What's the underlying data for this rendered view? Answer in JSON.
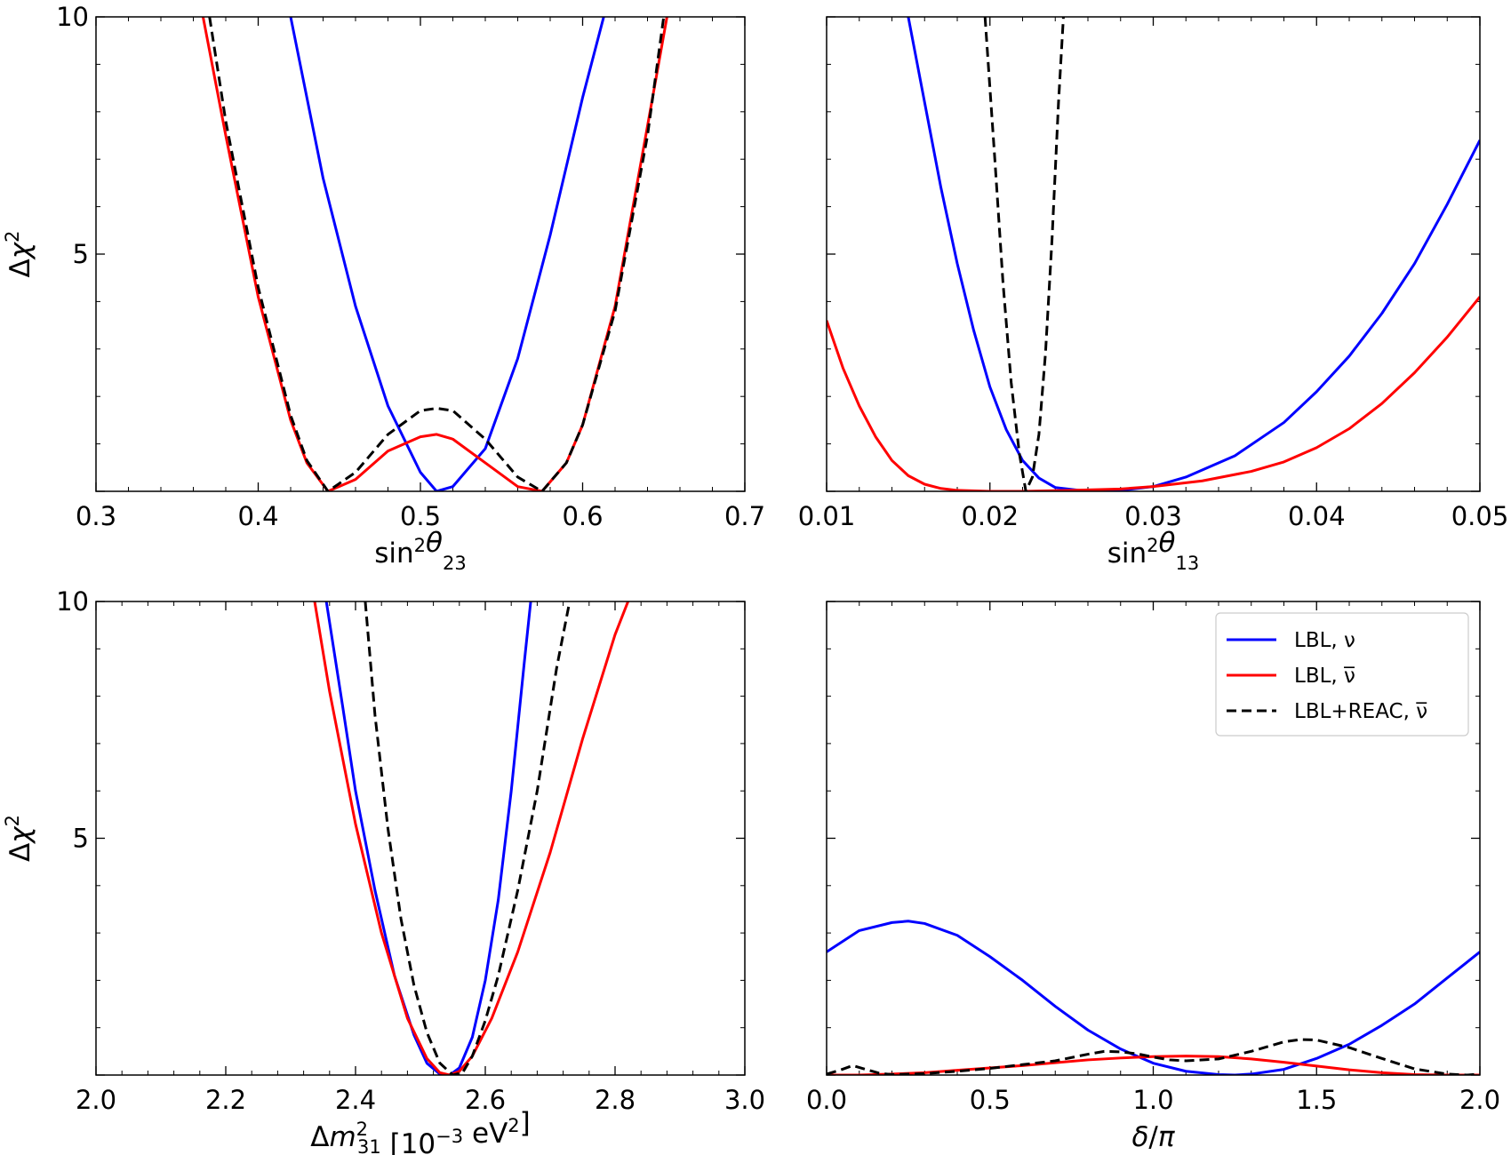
{
  "colors": {
    "nu": "#0000ff",
    "nubar": "#ff0000",
    "combined": "#000000"
  },
  "legend": {
    "placement": "top-right of bottom-right panel",
    "entries": [
      {
        "label": "LBL, ν",
        "series": "nu",
        "style": "solid"
      },
      {
        "label": "LBL, ν̅",
        "series": "nubar",
        "style": "solid"
      },
      {
        "label": "LBL+REAC, ν̅",
        "series": "combined",
        "style": "dashed"
      }
    ]
  },
  "chart_data": [
    {
      "type": "line",
      "panel": "top-left",
      "xlabel": "sin²θ23",
      "ylabel": "Δχ²",
      "xlim": [
        0.3,
        0.7
      ],
      "ylim": [
        0,
        10
      ],
      "xticks": [
        "0.3",
        "0.4",
        "0.5",
        "0.6",
        "0.7"
      ],
      "yticks": [
        "5",
        "10"
      ],
      "series": [
        {
          "name": "LBL, ν",
          "key": "nu",
          "x": [
            0.42,
            0.44,
            0.46,
            0.48,
            0.5,
            0.51,
            0.52,
            0.54,
            0.56,
            0.58,
            0.6,
            0.613
          ],
          "y": [
            10,
            6.6,
            3.9,
            1.8,
            0.4,
            0.0,
            0.1,
            0.9,
            2.8,
            5.4,
            8.3,
            10
          ]
        },
        {
          "name": "LBL, ν̅",
          "key": "nubar",
          "x": [
            0.366,
            0.38,
            0.4,
            0.42,
            0.43,
            0.443,
            0.46,
            0.48,
            0.5,
            0.51,
            0.52,
            0.54,
            0.56,
            0.575,
            0.59,
            0.6,
            0.62,
            0.64,
            0.652
          ],
          "y": [
            10,
            7.5,
            4.1,
            1.5,
            0.6,
            0.0,
            0.25,
            0.85,
            1.15,
            1.2,
            1.1,
            0.6,
            0.1,
            0.0,
            0.6,
            1.4,
            3.9,
            7.7,
            10
          ]
        },
        {
          "name": "LBL+REAC, ν̅",
          "key": "combined",
          "x": [
            0.37,
            0.38,
            0.4,
            0.42,
            0.43,
            0.443,
            0.46,
            0.48,
            0.5,
            0.51,
            0.52,
            0.54,
            0.56,
            0.575,
            0.59,
            0.6,
            0.62,
            0.64,
            0.65
          ],
          "y": [
            10,
            7.8,
            4.3,
            1.6,
            0.65,
            0.0,
            0.4,
            1.2,
            1.7,
            1.75,
            1.7,
            1.1,
            0.3,
            0.0,
            0.6,
            1.4,
            3.8,
            7.5,
            10
          ]
        }
      ]
    },
    {
      "type": "line",
      "panel": "top-right",
      "xlabel": "sin²θ13",
      "ylabel": "",
      "xlim": [
        0.01,
        0.05
      ],
      "ylim": [
        0,
        10
      ],
      "xticks": [
        "0.01",
        "0.02",
        "0.03",
        "0.04",
        "0.05"
      ],
      "yticks": [],
      "series": [
        {
          "name": "LBL, ν",
          "key": "nu",
          "x": [
            0.015,
            0.016,
            0.017,
            0.018,
            0.019,
            0.02,
            0.021,
            0.022,
            0.023,
            0.024,
            0.026,
            0.028,
            0.03,
            0.032,
            0.035,
            0.038,
            0.04,
            0.042,
            0.044,
            0.046,
            0.048,
            0.05
          ],
          "y": [
            10,
            8.2,
            6.4,
            4.8,
            3.4,
            2.2,
            1.3,
            0.65,
            0.28,
            0.08,
            0.0,
            0.02,
            0.1,
            0.3,
            0.75,
            1.45,
            2.1,
            2.85,
            3.75,
            4.8,
            6.05,
            7.4
          ]
        },
        {
          "name": "LBL, ν̅",
          "key": "nubar",
          "x": [
            0.01,
            0.011,
            0.012,
            0.013,
            0.014,
            0.015,
            0.016,
            0.017,
            0.018,
            0.02,
            0.022,
            0.025,
            0.028,
            0.03,
            0.033,
            0.036,
            0.038,
            0.04,
            0.042,
            0.044,
            0.046,
            0.048,
            0.05
          ],
          "y": [
            3.6,
            2.6,
            1.8,
            1.15,
            0.65,
            0.33,
            0.15,
            0.06,
            0.02,
            0.0,
            0.0,
            0.02,
            0.05,
            0.1,
            0.22,
            0.42,
            0.62,
            0.92,
            1.32,
            1.85,
            2.5,
            3.25,
            4.1
          ]
        },
        {
          "name": "LBL+REAC, ν̅",
          "key": "combined",
          "x": [
            0.0197,
            0.0203,
            0.0208,
            0.0213,
            0.0218,
            0.0222,
            0.0226,
            0.023,
            0.0234,
            0.0238,
            0.0242,
            0.0245
          ],
          "y": [
            10,
            7.0,
            4.4,
            2.3,
            0.8,
            0.0,
            0.3,
            1.2,
            2.9,
            5.3,
            8.2,
            10
          ]
        }
      ]
    },
    {
      "type": "line",
      "panel": "bottom-left",
      "xlabel": "Δm²31 [10⁻³ eV²]",
      "ylabel": "Δχ²",
      "xlim": [
        2.0,
        3.0
      ],
      "ylim": [
        0,
        10
      ],
      "xticks": [
        "2.0",
        "2.2",
        "2.4",
        "2.6",
        "2.8",
        "3.0"
      ],
      "yticks": [
        "5",
        "10"
      ],
      "series": [
        {
          "name": "LBL, ν",
          "key": "nu",
          "x": [
            2.355,
            2.38,
            2.4,
            2.43,
            2.46,
            2.49,
            2.51,
            2.53,
            2.545,
            2.56,
            2.58,
            2.6,
            2.62,
            2.64,
            2.66,
            2.67
          ],
          "y": [
            10,
            7.8,
            6.0,
            3.9,
            2.1,
            0.85,
            0.25,
            0.02,
            0.0,
            0.15,
            0.8,
            2.0,
            3.7,
            6.0,
            8.7,
            10
          ]
        },
        {
          "name": "LBL, ν̅",
          "key": "nubar",
          "x": [
            2.337,
            2.36,
            2.4,
            2.44,
            2.48,
            2.51,
            2.53,
            2.545,
            2.56,
            2.58,
            2.61,
            2.65,
            2.7,
            2.75,
            2.8,
            2.82
          ],
          "y": [
            10,
            8.1,
            5.3,
            3.0,
            1.2,
            0.35,
            0.05,
            0.0,
            0.08,
            0.4,
            1.2,
            2.6,
            4.7,
            7.1,
            9.3,
            10
          ]
        },
        {
          "name": "LBL+REAC, ν̅",
          "key": "combined",
          "x": [
            2.415,
            2.43,
            2.45,
            2.47,
            2.49,
            2.51,
            2.53,
            2.55,
            2.565,
            2.58,
            2.6,
            2.62,
            2.65,
            2.68,
            2.71,
            2.73
          ],
          "y": [
            10,
            7.6,
            5.2,
            3.3,
            1.9,
            0.9,
            0.25,
            0.0,
            0.05,
            0.4,
            1.15,
            2.1,
            3.9,
            6.0,
            8.6,
            10
          ]
        }
      ]
    },
    {
      "type": "line",
      "panel": "bottom-right",
      "xlabel": "δ/π",
      "ylabel": "",
      "xlim": [
        0.0,
        2.0
      ],
      "ylim": [
        0,
        10
      ],
      "xticks": [
        "0.0",
        "0.5",
        "1.0",
        "1.5",
        "2.0"
      ],
      "yticks": [],
      "series": [
        {
          "name": "LBL, ν",
          "key": "nu",
          "x": [
            0.0,
            0.1,
            0.2,
            0.25,
            0.3,
            0.4,
            0.5,
            0.6,
            0.7,
            0.8,
            0.9,
            1.0,
            1.1,
            1.2,
            1.25,
            1.3,
            1.4,
            1.5,
            1.6,
            1.7,
            1.8,
            1.9,
            2.0
          ],
          "y": [
            2.6,
            3.05,
            3.22,
            3.25,
            3.2,
            2.95,
            2.5,
            2.0,
            1.45,
            0.95,
            0.55,
            0.25,
            0.08,
            0.01,
            0.0,
            0.02,
            0.12,
            0.35,
            0.65,
            1.05,
            1.5,
            2.05,
            2.6
          ]
        },
        {
          "name": "LBL, ν̅",
          "key": "nubar",
          "x": [
            0.0,
            0.1,
            0.2,
            0.3,
            0.4,
            0.5,
            0.6,
            0.7,
            0.8,
            0.9,
            1.0,
            1.1,
            1.2,
            1.3,
            1.4,
            1.5,
            1.6,
            1.7,
            1.8,
            1.9,
            2.0
          ],
          "y": [
            0.0,
            0.0,
            0.02,
            0.05,
            0.1,
            0.15,
            0.2,
            0.26,
            0.32,
            0.36,
            0.39,
            0.4,
            0.39,
            0.34,
            0.27,
            0.19,
            0.11,
            0.05,
            0.01,
            0.0,
            0.0
          ]
        },
        {
          "name": "LBL+REAC, ν̅",
          "key": "combined",
          "x": [
            0.0,
            0.04,
            0.08,
            0.12,
            0.16,
            0.2,
            0.3,
            0.4,
            0.5,
            0.6,
            0.7,
            0.8,
            0.85,
            0.9,
            0.95,
            1.0,
            1.05,
            1.1,
            1.2,
            1.3,
            1.4,
            1.45,
            1.5,
            1.6,
            1.7,
            1.8,
            1.9,
            1.96,
            2.0
          ],
          "y": [
            0.02,
            0.1,
            0.2,
            0.12,
            0.04,
            0.01,
            0.03,
            0.08,
            0.14,
            0.22,
            0.3,
            0.44,
            0.5,
            0.49,
            0.45,
            0.38,
            0.32,
            0.3,
            0.34,
            0.5,
            0.7,
            0.75,
            0.74,
            0.58,
            0.35,
            0.13,
            0.02,
            0.0,
            0.02
          ]
        }
      ]
    }
  ]
}
